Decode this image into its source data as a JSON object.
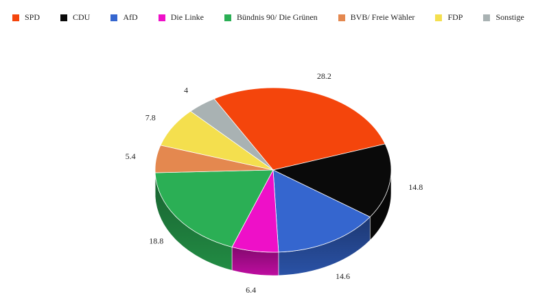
{
  "chart_data": {
    "type": "pie",
    "style": "3d",
    "legend_position": "top-left",
    "title": "",
    "slices": [
      {
        "name": "SPD",
        "value": 28.2,
        "label": "28.2",
        "color": "#f4450c"
      },
      {
        "name": "CDU",
        "value": 14.8,
        "label": "14.8",
        "color": "#0a0a0a"
      },
      {
        "name": "AfD",
        "value": 14.6,
        "label": "14.6",
        "color": "#3566cf"
      },
      {
        "name": "Die Linke",
        "value": 6.4,
        "label": "6.4",
        "color": "#ee10c8"
      },
      {
        "name": "Bündnis 90/ Die Grünen",
        "value": 18.8,
        "label": "18.8",
        "color": "#2baf55"
      },
      {
        "name": "BVB/ Freie Wähler",
        "value": 5.4,
        "label": "5.4",
        "color": "#e4884f"
      },
      {
        "name": "FDP",
        "value": 7.8,
        "label": "7.8",
        "color": "#f4df4e"
      },
      {
        "name": "Sonstige",
        "value": 4,
        "label": "4",
        "color": "#a9b2b3"
      }
    ]
  }
}
